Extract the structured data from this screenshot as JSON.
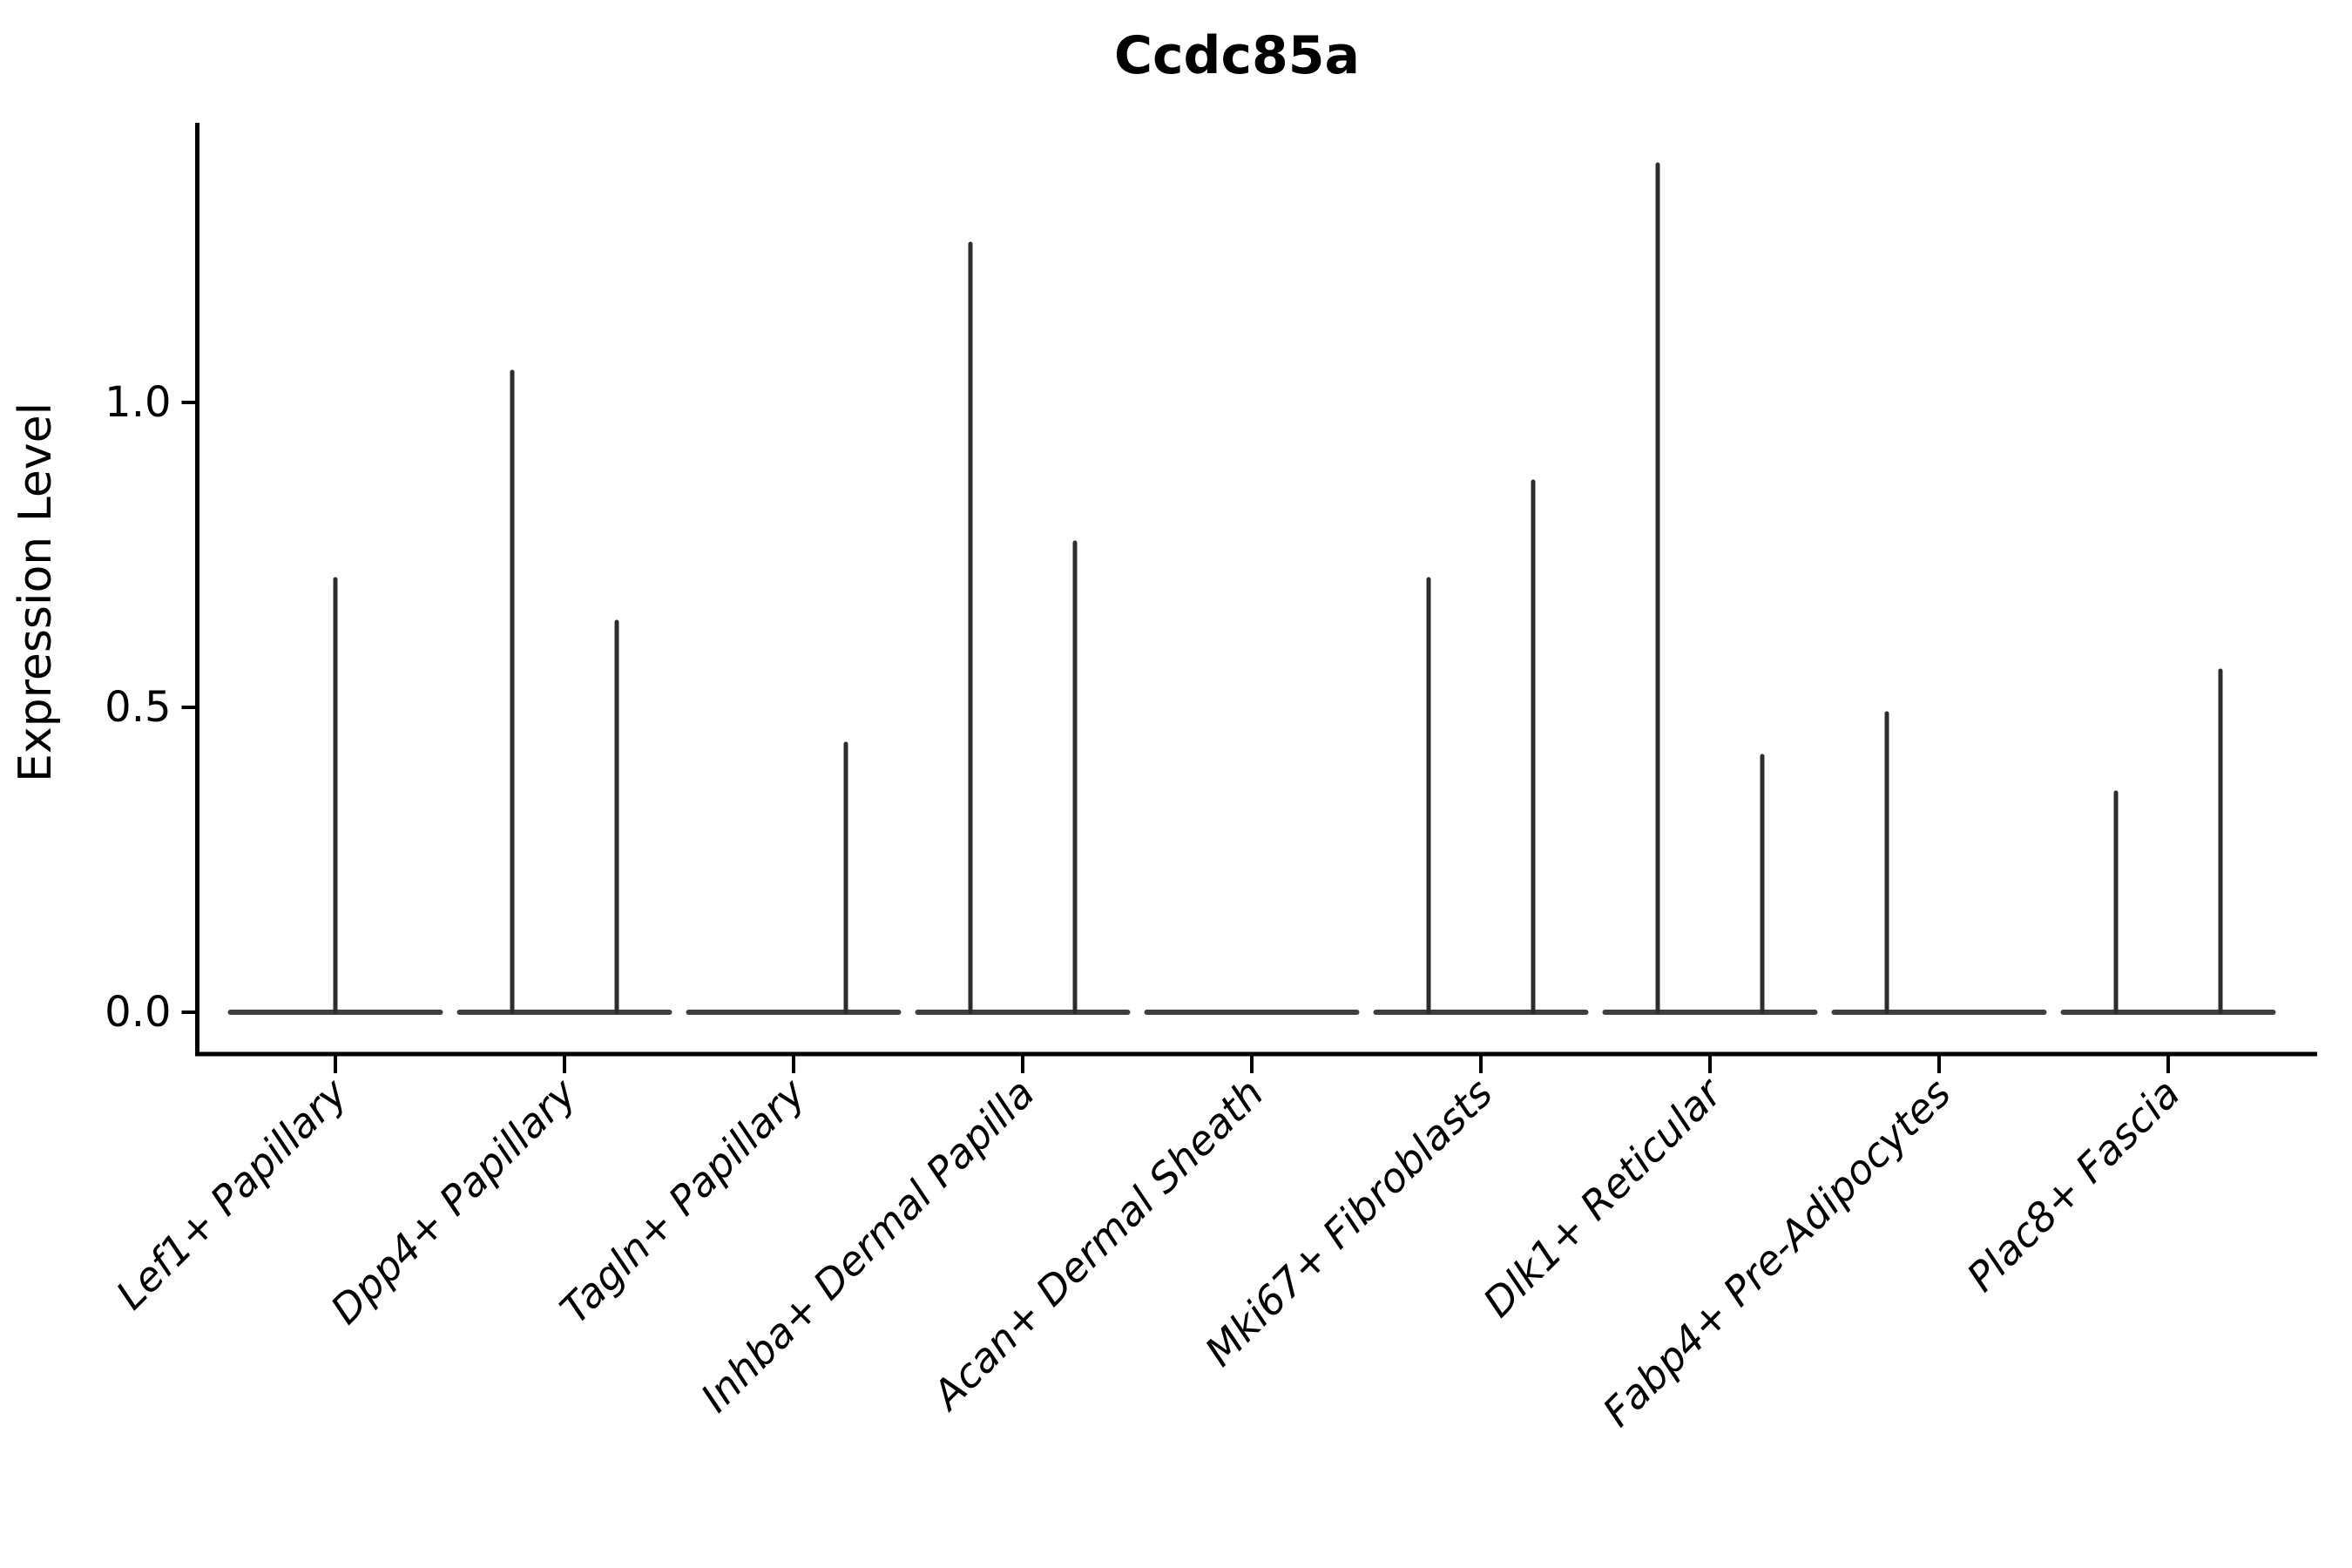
{
  "figure": {
    "title": "Ccdc85a",
    "ylabel": "Expression Level"
  },
  "chart_data": {
    "type": "violin",
    "title": "Ccdc85a",
    "xlabel": "",
    "ylabel": "Expression Level",
    "categories": [
      "Lef1+ Papillary",
      "Dpp4+ Papillary",
      "Tagln+ Papillary",
      "Inhba+ Dermal Papilla",
      "Acan+ Dermal Sheath",
      "Mki67+ Fibroblasts",
      "Dlk1+ Reticular",
      "Fabp4+ Pre-Adipocytes",
      "Plac8+ Fascia"
    ],
    "yticks": [
      {
        "value": 0.0,
        "label": "0.0"
      },
      {
        "value": 0.5,
        "label": "0.5"
      },
      {
        "value": 1.0,
        "label": "1.0"
      }
    ],
    "ylim": [
      -0.07,
      1.46
    ],
    "grid": false,
    "legend": "none",
    "description": "Each category shows a collapsed violin (flat line at expression 0) with thin vertical spikes marking the sparse expressing cells; spikes are dodged sub-violins (left/right group) or a single full-width violin (center).",
    "violins": [
      {
        "category": "Lef1+ Papillary",
        "baseline_value": 0,
        "spikes": [
          {
            "pos": "center",
            "max": 0.71
          }
        ]
      },
      {
        "category": "Dpp4+ Papillary",
        "baseline_value": 0,
        "spikes": [
          {
            "pos": "left",
            "max": 1.05
          },
          {
            "pos": "right",
            "max": 0.64
          }
        ]
      },
      {
        "category": "Tagln+ Papillary",
        "baseline_value": 0,
        "spikes": [
          {
            "pos": "right",
            "max": 0.44
          }
        ]
      },
      {
        "category": "Inhba+ Dermal Papilla",
        "baseline_value": 0,
        "spikes": [
          {
            "pos": "left",
            "max": 1.26
          },
          {
            "pos": "right",
            "max": 0.77
          }
        ]
      },
      {
        "category": "Acan+ Dermal Sheath",
        "baseline_value": 0,
        "spikes": []
      },
      {
        "category": "Mki67+ Fibroblasts",
        "baseline_value": 0,
        "spikes": [
          {
            "pos": "left",
            "max": 0.71
          },
          {
            "pos": "right",
            "max": 0.87
          }
        ]
      },
      {
        "category": "Dlk1+ Reticular",
        "baseline_value": 0,
        "spikes": [
          {
            "pos": "left",
            "max": 1.39
          },
          {
            "pos": "right",
            "max": 0.42
          }
        ]
      },
      {
        "category": "Fabp4+ Pre-Adipocytes",
        "baseline_value": 0,
        "spikes": [
          {
            "pos": "left",
            "max": 0.49
          }
        ]
      },
      {
        "category": "Plac8+ Fascia",
        "baseline_value": 0,
        "spikes": [
          {
            "pos": "left",
            "max": 0.36
          },
          {
            "pos": "right",
            "max": 0.56
          }
        ]
      }
    ],
    "colors": {
      "axis": "#000000",
      "text": "#000000",
      "violin_spike": "#2d2d2d",
      "violin_baseline": "#3f3f3f",
      "background": "#ffffff"
    }
  }
}
